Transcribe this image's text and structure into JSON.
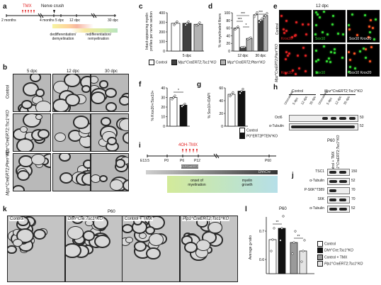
{
  "panels": {
    "a": {
      "letter": "a",
      "tmx": "TMX",
      "nerve_crush": "Nerve crush",
      "ticks": [
        "2 months",
        "4 months",
        "5 dpc",
        "12 dpc",
        "30 dpc"
      ],
      "phase1": "dedifferentiation/\ndemyelination",
      "phase2": "redifferentiation/\nremyelination"
    },
    "b": {
      "letter": "b",
      "cols": [
        "5 dpc",
        "12 dpc",
        "30 dpc"
      ],
      "rows": [
        "Control",
        "Mpz^CreERT2;Tsc1^KO",
        "Mpz^CreERT2;Pten^KO"
      ]
    },
    "c": {
      "letter": "c",
      "ylabel": "Intact-appearing myelin\nprofiles per nerve section",
      "xlabel": "5 dpc"
    },
    "d": {
      "letter": "d",
      "ylabel": "% remyelinated fibers",
      "sig": [
        "***",
        "***",
        "*",
        "***"
      ]
    },
    "e": {
      "letter": "e",
      "title": "12 dpc",
      "rows": [
        "Control",
        "Mpz^CreERT2;Pten^KO"
      ],
      "cols": [
        "Krox20",
        "Sox10",
        "Sox10 Krox20"
      ]
    },
    "f": {
      "letter": "f",
      "ylabel": "% Krox20+/Sox10+",
      "sig": "*"
    },
    "g": {
      "letter": "g",
      "ylabel": "% Sox10+/DAPI",
      "legend": [
        "Control",
        "P0^ERT2PTEN^KO"
      ]
    },
    "h": {
      "letter": "h",
      "groups": [
        "Control",
        "Mpz^CreERT2;Tsc1^KO"
      ],
      "lanes": [
        "Uncrushed",
        "5 dpc",
        "12 dpc",
        "30 dpc",
        "Uncrushed",
        "5 dpc",
        "12 dpc",
        "30 dpc"
      ],
      "bands": [
        "Oct6",
        "α-Tubulin"
      ],
      "mw": [
        "50",
        "52"
      ]
    },
    "i": {
      "letter": "i",
      "drug": "4OH-TMX",
      "ticks": [
        "E13.5",
        "P0",
        "P6",
        "P12",
        "P60"
      ],
      "plp": "PLPCreERT2",
      "dhh": "DhhCre",
      "phase1": "onset of\nmyelination",
      "phase2": "myelin\ngrowth"
    },
    "j": {
      "letter": "j",
      "title": "P60",
      "lanes": [
        "Control + TMX",
        "Plp1^CreERT2;Tsc1^KO"
      ],
      "bands": [
        "TSC1",
        "α-Tubulin",
        "P-S6K^T389",
        "S6K",
        "α-Tubulin"
      ],
      "mw": [
        "150",
        "52",
        "70",
        "70",
        "52"
      ]
    },
    "k": {
      "letter": "k",
      "title": "P60",
      "images": [
        "Control",
        "Dhh^Cre;Tsc1^KO",
        "Control + TMX",
        "Plp1^CreERT2;Tsc1^KO"
      ]
    },
    "l": {
      "letter": "l",
      "title": "P60",
      "ylabel": "Average g-ratio",
      "sig": [
        "**",
        "**"
      ],
      "legend": [
        "Control",
        "Dhh^Cre;Tsc1^KO",
        "Control + TMX",
        "Plp1^CreERT2;Tsc1^KO"
      ]
    }
  },
  "legend_cd": [
    "Control",
    "Mpz^CreERT2;Tsc1^KO",
    "Mpz^CreERT2;Pten^KO"
  ],
  "colors": {
    "control": "#ffffff",
    "tsc1": "#404040",
    "pten": "#b3b3b3",
    "red": "#e22222",
    "green": "#33dd33"
  },
  "chart_data": [
    {
      "type": "bar",
      "panel": "c",
      "categories": [
        "5 dpc"
      ],
      "series": [
        {
          "name": "Control",
          "values": [
            290
          ]
        },
        {
          "name": "Mpz^CreERT2;Tsc1^KO",
          "values": [
            290
          ]
        },
        {
          "name": "Mpz^CreERT2;Pten^KO",
          "values": [
            280
          ]
        }
      ],
      "ylim": [
        0,
        400
      ],
      "ticks": [
        0,
        100,
        200,
        300,
        400
      ]
    },
    {
      "type": "bar",
      "panel": "d",
      "categories": [
        "12 dpc",
        "30 dpc"
      ],
      "series": [
        {
          "name": "Control",
          "values": [
            60,
            95
          ]
        },
        {
          "name": "Mpz^CreERT2;Tsc1^KO",
          "values": [
            10,
            80
          ]
        },
        {
          "name": "Mpz^CreERT2;Pten^KO",
          "values": [
            33,
            93
          ]
        }
      ],
      "ylim": [
        0,
        100
      ],
      "ticks": [
        0,
        20,
        40,
        60,
        80,
        100
      ]
    },
    {
      "type": "bar",
      "panel": "f",
      "categories": [
        "Control",
        "P0^ERT2PTEN^KO"
      ],
      "values": [
        30,
        22
      ],
      "ylim": [
        0,
        40
      ],
      "ticks": [
        0,
        10,
        20,
        30,
        40
      ]
    },
    {
      "type": "bar",
      "panel": "g",
      "categories": [
        "Control",
        "P0^ERT2PTEN^KO"
      ],
      "values": [
        50,
        55
      ],
      "ylim": [
        0,
        60
      ],
      "ticks": [
        0,
        20,
        40,
        60
      ]
    },
    {
      "type": "bar",
      "panel": "l",
      "categories": [
        "Control",
        "Dhh^Cre;Tsc1^KO",
        "Control + TMX",
        "Plp1^CreERT2;Tsc1^KO"
      ],
      "values": [
        0.67,
        0.71,
        0.66,
        0.63
      ],
      "ylim": [
        0.55,
        0.75
      ],
      "ticks": [
        0.6,
        0.7
      ]
    }
  ]
}
